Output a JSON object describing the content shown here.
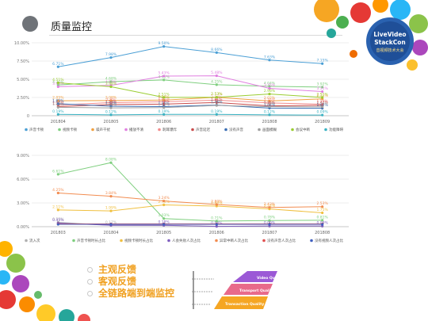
{
  "slide": {
    "title": "质量监控",
    "logo": {
      "line1": "LiveVideo",
      "line2": "StackCon",
      "subtitle": "音视频技术大会"
    },
    "bullets": [
      "主观反馈",
      "客观反馈",
      "全链路端到端监控"
    ],
    "pyramid": {
      "levels": [
        "Video Quality",
        "Transport Quality",
        "Transaction Quality"
      ]
    }
  },
  "chart_data": [
    {
      "type": "line",
      "categories": [
        "201804",
        "201805",
        "201806",
        "201807",
        "201808",
        "201809"
      ],
      "ylim": [
        0,
        10
      ],
      "yticks": [
        "0",
        "2.50%",
        "5.00%",
        "7.50%",
        "10.00%"
      ],
      "grid": true,
      "legend_placement": "bottom",
      "series": [
        {
          "name": "声音卡顿",
          "color": "#4b9fd5",
          "values": [
            6.71,
            7.98,
            9.5,
            8.66,
            7.63,
            7.15
          ],
          "labels": [
            "6.71%",
            "7.98%",
            "9.50%",
            "8.66%",
            "7.63%",
            "7.15%"
          ]
        },
        {
          "name": "视频卡顿",
          "color": "#7fcf7f",
          "values": [
            4.21,
            4.68,
            4.91,
            4.25,
            4.04,
            3.92
          ],
          "labels": [
            "4.21%",
            "4.68%",
            "4.91%",
            "4.25%",
            "4.04%",
            "3.92%"
          ]
        },
        {
          "name": "噪声干扰",
          "color": "#f0a040",
          "values": [
            2.05,
            2.08,
            2.14,
            2.53,
            2.02,
            2.31
          ],
          "labels": [
            "2.05%",
            "2.08%",
            "2.14%",
            "2.53%",
            "2.02%",
            "2.31%"
          ]
        },
        {
          "name": "播放不清",
          "color": "#e07fe0",
          "values": [
            3.98,
            4.16,
            5.43,
            5.48,
            3.75,
            3.31
          ],
          "labels": [
            "3.98%",
            "4.16%",
            "5.43%",
            "5.48%",
            "3.75%",
            "3.31%"
          ]
        },
        {
          "name": "刺耳爆炸",
          "color": "#f28c8c",
          "values": [
            1.47,
            1.8,
            1.91,
            2.14,
            1.75,
            1.58
          ],
          "labels": [
            "1.47%",
            "1.8%",
            "1.91%",
            "2.14%",
            "1.75%",
            "1.58%"
          ]
        },
        {
          "name": "声音延迟",
          "color": "#c94c4c",
          "values": [
            1.25,
            1.53,
            1.59,
            1.81,
            1.35,
            1.42
          ],
          "labels": [
            "1.25%",
            "1.53%",
            "1.59%",
            "1.81%",
            "1.35%",
            "1.42%"
          ]
        },
        {
          "name": "没有声音",
          "color": "#3b6fb5",
          "values": [
            1.65,
            1.31,
            1.25,
            1.46,
            1.04,
            1.02
          ],
          "labels": [
            "1.65%",
            "1.31%",
            "1.25%",
            "1.46%",
            "1.04%",
            "1.02%"
          ]
        },
        {
          "name": "画面模糊",
          "color": "#a0a0a0",
          "values": [
            1.15,
            1.08,
            1.11,
            1.41,
            1.24,
            1.21
          ],
          "labels": [
            "1.15%",
            "1.08%",
            "1.11%",
            "1.41%",
            "1.24%",
            "1.21%"
          ]
        },
        {
          "name": "会议中断",
          "color": "#9acd32",
          "values": [
            4.51,
            3.98,
            2.51,
            2.53,
            2.98,
            2.51
          ],
          "labels": [
            "4.51%",
            "3.98%",
            "2.51%",
            "2.53%",
            "2.98%",
            "2.51%"
          ]
        },
        {
          "name": "功能障碍",
          "color": "#3bb3c3",
          "values": [
            0.19,
            0.12,
            0.19,
            0.19,
            0.12,
            0.09
          ],
          "labels": [
            "0.19%",
            "0.12%",
            "0.19%",
            "0.19%",
            "0.12%",
            "0.09%"
          ]
        }
      ]
    },
    {
      "type": "line",
      "categories": [
        "201803",
        "201804",
        "201805",
        "201806",
        "201807",
        "201808"
      ],
      "ylim": [
        0,
        9
      ],
      "yticks": [
        "0.00%",
        "3.00%",
        "6.00%",
        "9.00%"
      ],
      "grid": true,
      "legend_placement": "bottom",
      "series": [
        {
          "name": "流入次",
          "color": "#b0b0b0",
          "values": [
            0.55,
            0.17,
            0.15,
            0.05,
            0.05,
            0.05
          ],
          "labels": [
            "0.55%",
            "0.17%",
            "",
            "",
            "",
            ""
          ]
        },
        {
          "name": "声音卡顿时长占比",
          "color": "#7fcf7f",
          "values": [
            6.61,
            8.08,
            1.03,
            0.71,
            0.78,
            0.81
          ],
          "labels": [
            "6.61%",
            "8.08%",
            "1.03%",
            "0.71%",
            "0.78%",
            "0.81%"
          ]
        },
        {
          "name": "视频卡顿时长占比",
          "color": "#f0c040",
          "values": [
            2.11,
            1.99,
            2.75,
            2.6,
            2.24,
            1.75
          ],
          "labels": [
            "2.11%",
            "1.99%",
            "2.75%",
            "2.60%",
            "2.24%",
            "1.75%"
          ]
        },
        {
          "name": "人会失败人次占比",
          "color": "#7f5fbf",
          "values": [
            0.45,
            0.17,
            0.18,
            0.04,
            0.09,
            0.09
          ],
          "labels": [
            "0.45%",
            "",
            "0.18%",
            "0.04%",
            "0.09%",
            "0.09%"
          ]
        },
        {
          "name": "异常中断人次占比",
          "color": "#f28c50",
          "values": [
            4.25,
            3.84,
            3.24,
            2.8,
            2.43,
            2.53
          ],
          "labels": [
            "4.25%",
            "3.84%",
            "3.24%",
            "2.80%",
            "2.43%",
            "2.53%"
          ]
        },
        {
          "name": "没有声音人次占比",
          "color": "#e05050",
          "values": [
            0.35,
            0.35,
            0.35,
            0.35,
            0.35,
            0.35
          ],
          "labels": [
            "",
            "",
            "",
            "",
            "",
            ""
          ]
        },
        {
          "name": "没有视频人次占比",
          "color": "#4060c0",
          "values": [
            0.3,
            0.3,
            0.3,
            0.3,
            0.3,
            0.3
          ],
          "labels": [
            "",
            "",
            "",
            "",
            "",
            ""
          ]
        }
      ]
    }
  ]
}
